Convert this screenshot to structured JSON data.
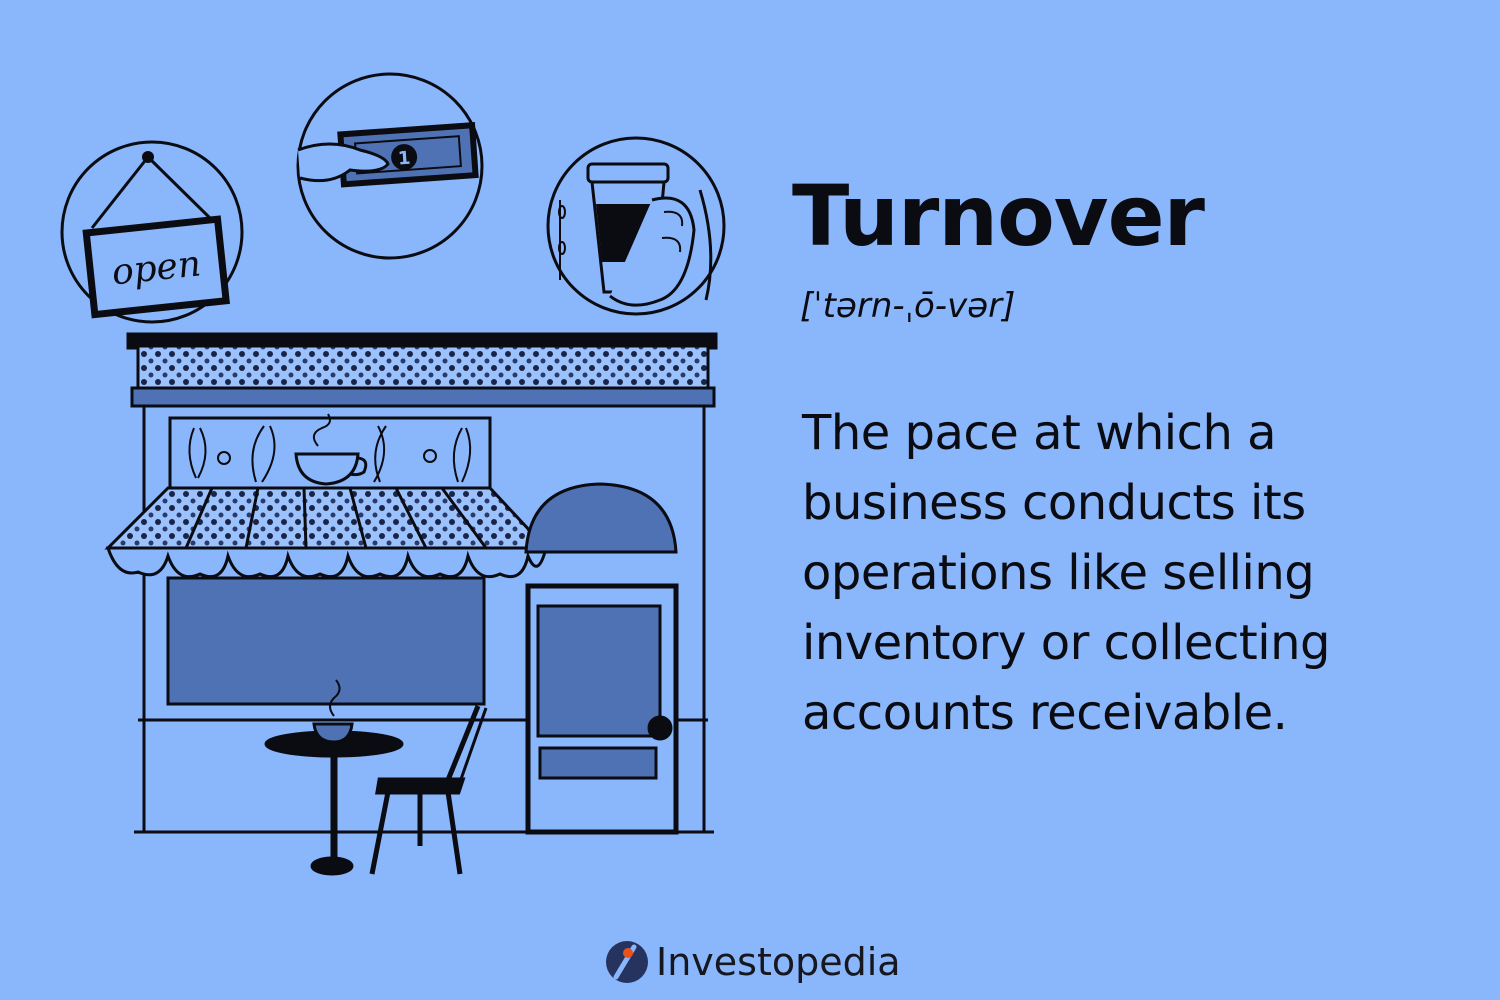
{
  "term": "Turnover",
  "pronunciation": "[ˈtərn-ˌō-vər]",
  "definition": "The pace at which a business conducts its operations like selling inventory or collecting accounts receivable.",
  "illustration": {
    "sign_text": "open",
    "bill_text": "1"
  },
  "brand": {
    "name": "Investopedia",
    "icon": "investopedia-logo-icon"
  },
  "colors": {
    "background": "#8ab6fc",
    "ink": "#0b0b12",
    "shade": "#4f72b5",
    "logo_accent": "#e8521b"
  }
}
